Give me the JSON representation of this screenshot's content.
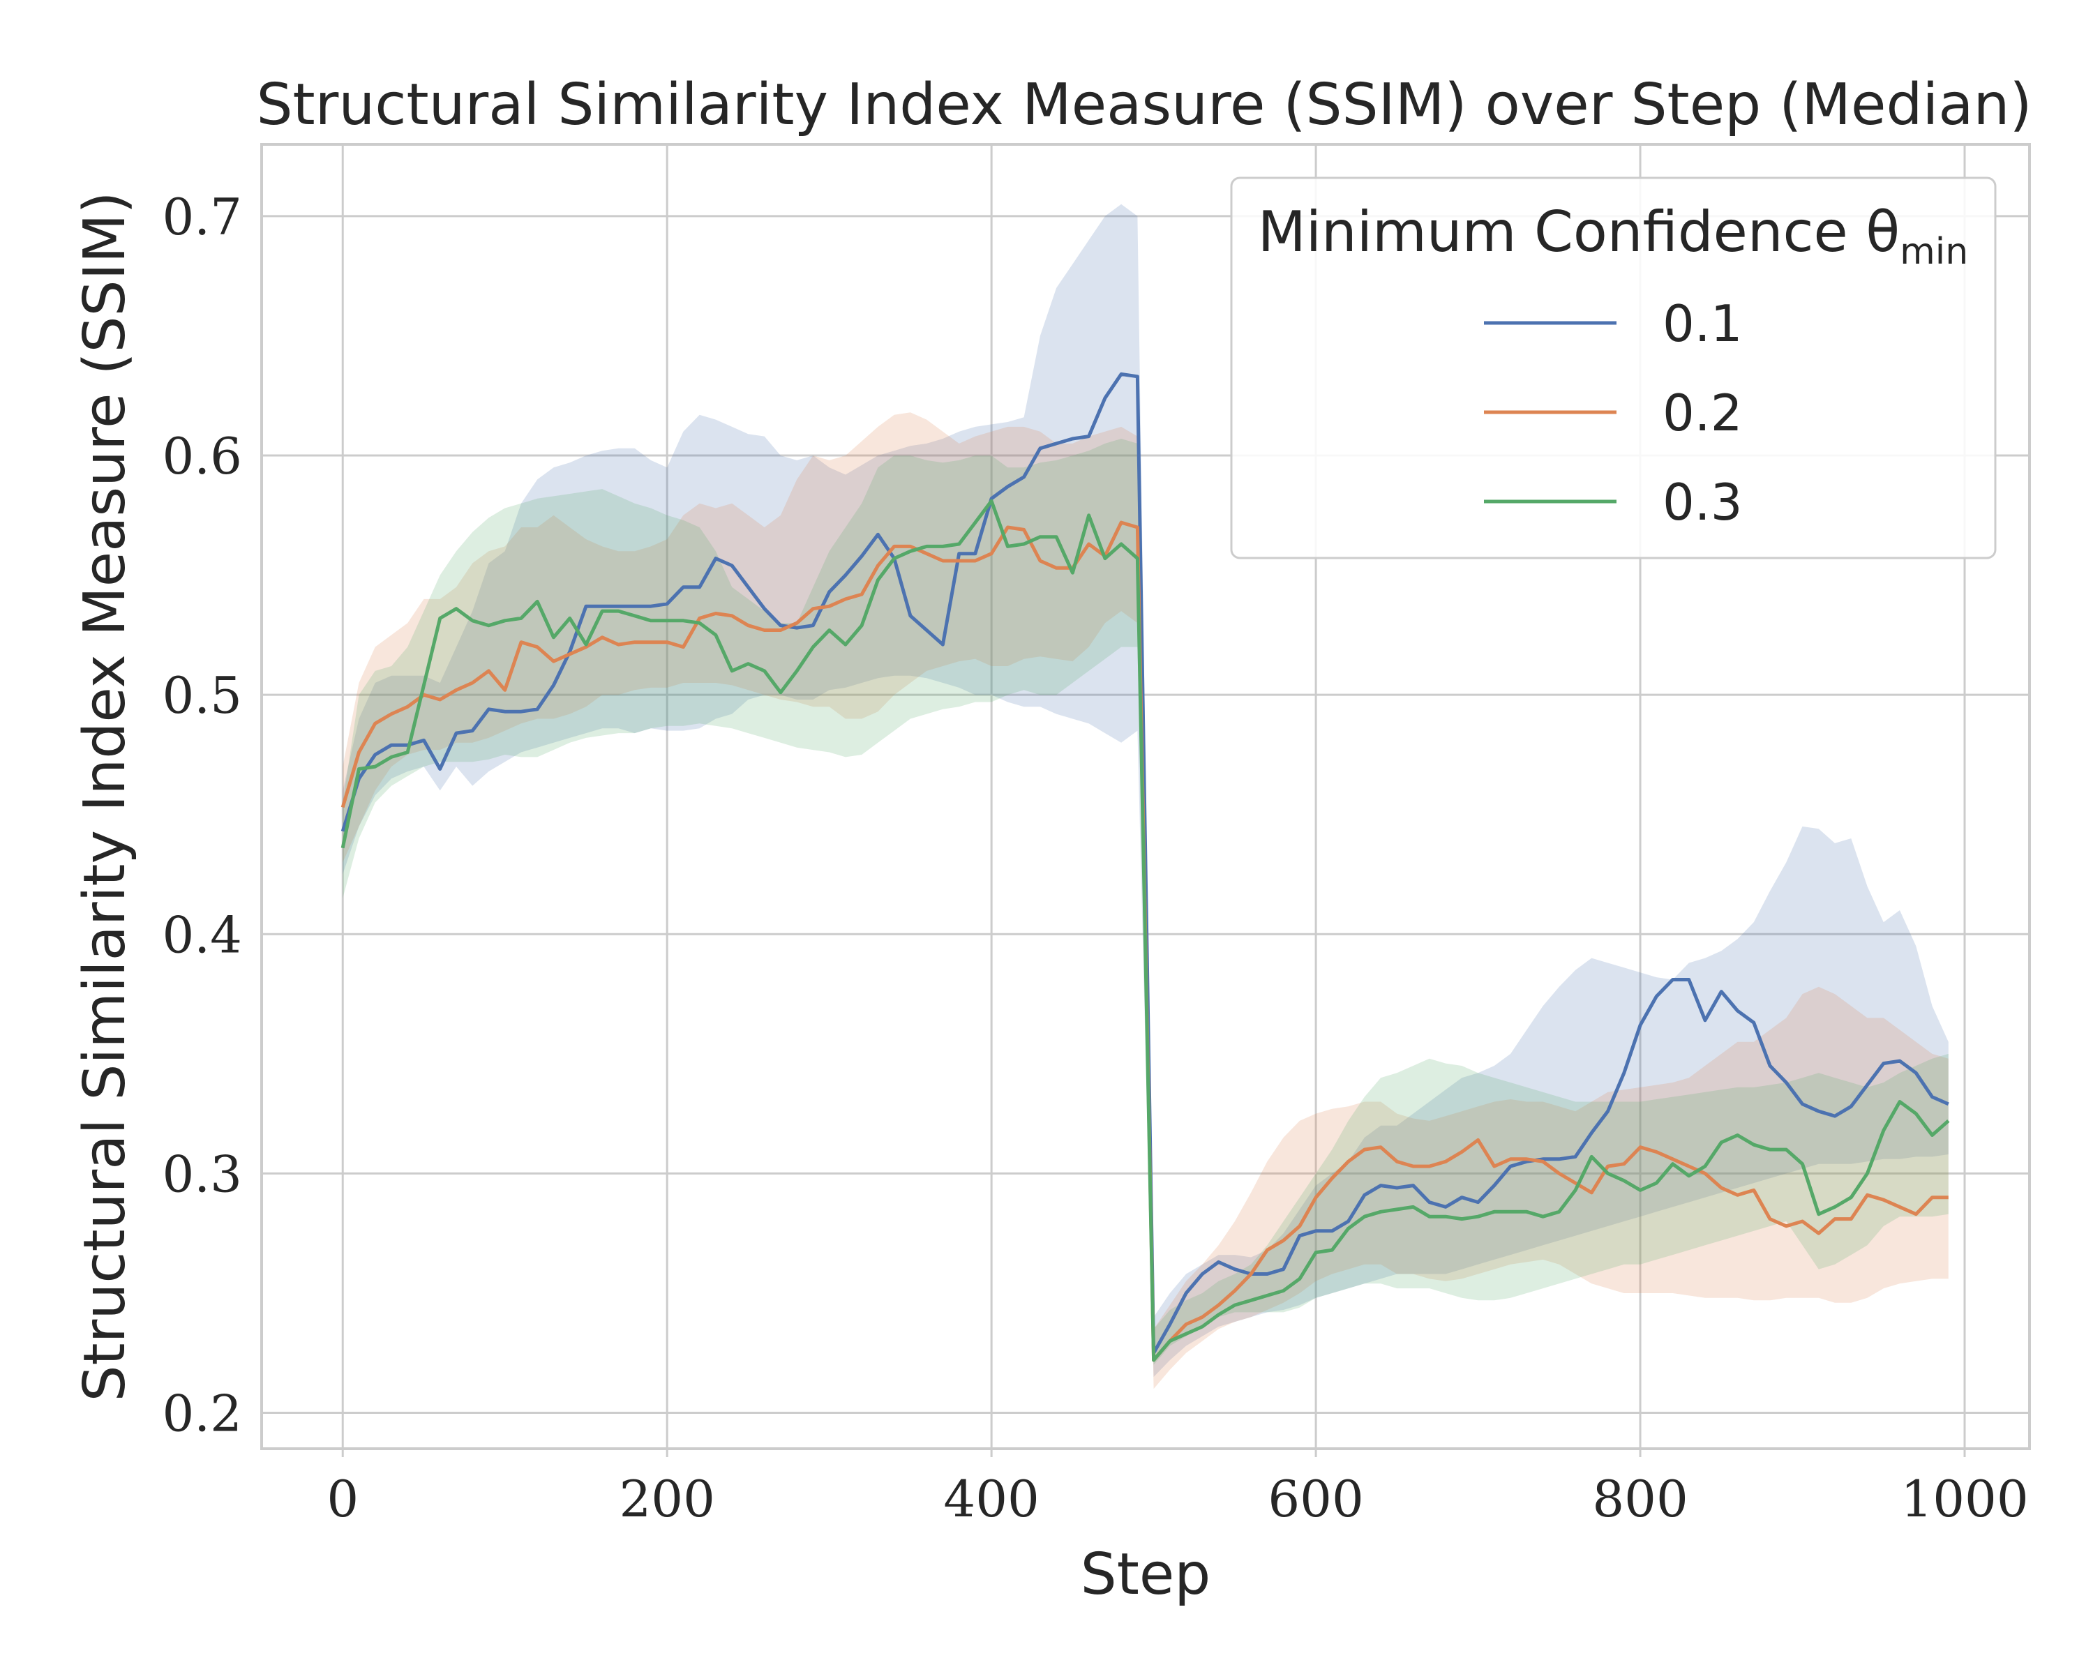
{
  "chart_data": {
    "type": "line",
    "title": "Structural Similarity Index Measure (SSIM) over Step (Median)",
    "xlabel": "Step",
    "ylabel": "Structural Similarity Index Measure (SSIM)",
    "xlim": [
      -50,
      1040
    ],
    "ylim": [
      0.185,
      0.73
    ],
    "xticks": [
      0,
      200,
      400,
      600,
      800,
      1000
    ],
    "xtick_labels": [
      "0",
      "200",
      "400",
      "600",
      "800",
      "1000"
    ],
    "yticks": [
      0.2,
      0.3,
      0.4,
      0.5,
      0.6,
      0.7
    ],
    "ytick_labels": [
      "0.2",
      "0.3",
      "0.4",
      "0.5",
      "0.6",
      "0.7"
    ],
    "grid": true,
    "legend": {
      "title": "Minimum Confidence θ",
      "title_subscript": "min",
      "placement": "top-right"
    },
    "x": [
      0,
      10,
      20,
      30,
      40,
      50,
      60,
      70,
      80,
      90,
      100,
      110,
      120,
      130,
      140,
      150,
      160,
      170,
      180,
      190,
      200,
      210,
      220,
      230,
      240,
      250,
      260,
      270,
      280,
      290,
      300,
      310,
      320,
      330,
      340,
      350,
      360,
      370,
      380,
      390,
      400,
      410,
      420,
      430,
      440,
      450,
      460,
      470,
      480,
      490,
      500,
      510,
      520,
      530,
      540,
      550,
      560,
      570,
      580,
      590,
      600,
      610,
      620,
      630,
      640,
      650,
      660,
      670,
      680,
      690,
      700,
      710,
      720,
      730,
      740,
      750,
      760,
      770,
      780,
      790,
      800,
      810,
      820,
      830,
      840,
      850,
      860,
      870,
      880,
      890,
      900,
      910,
      920,
      930,
      940,
      950,
      960,
      970,
      980,
      990
    ],
    "series": [
      {
        "name": "0.1",
        "color": "#4c72b0",
        "values": [
          0.443,
          0.465,
          0.475,
          0.479,
          0.479,
          0.481,
          0.469,
          0.484,
          0.485,
          0.494,
          0.493,
          0.493,
          0.494,
          0.504,
          0.518,
          0.537,
          0.537,
          0.537,
          0.537,
          0.537,
          0.538,
          0.545,
          0.545,
          0.557,
          0.554,
          0.545,
          0.536,
          0.529,
          0.528,
          0.529,
          0.543,
          0.55,
          0.558,
          0.567,
          0.557,
          0.533,
          0.527,
          0.521,
          0.559,
          0.559,
          0.582,
          0.587,
          0.591,
          0.603,
          0.605,
          0.607,
          0.608,
          0.624,
          0.634,
          0.633,
          0.225,
          0.237,
          0.25,
          0.258,
          0.263,
          0.26,
          0.258,
          0.258,
          0.26,
          0.274,
          0.276,
          0.276,
          0.28,
          0.291,
          0.295,
          0.294,
          0.295,
          0.288,
          0.286,
          0.29,
          0.288,
          0.295,
          0.303,
          0.305,
          0.306,
          0.306,
          0.307,
          0.317,
          0.326,
          0.342,
          0.362,
          0.374,
          0.381,
          0.381,
          0.364,
          0.376,
          0.368,
          0.363,
          0.345,
          0.338,
          0.329,
          0.326,
          0.324,
          0.328,
          0.337,
          0.346,
          0.347,
          0.342,
          0.332,
          0.329
        ],
        "lower": [
          0.425,
          0.445,
          0.458,
          0.465,
          0.468,
          0.47,
          0.46,
          0.47,
          0.462,
          0.468,
          0.472,
          0.476,
          0.478,
          0.48,
          0.482,
          0.484,
          0.486,
          0.486,
          0.484,
          0.486,
          0.485,
          0.485,
          0.486,
          0.49,
          0.492,
          0.498,
          0.5,
          0.5,
          0.498,
          0.498,
          0.502,
          0.503,
          0.505,
          0.507,
          0.508,
          0.508,
          0.507,
          0.505,
          0.503,
          0.5,
          0.5,
          0.497,
          0.495,
          0.495,
          0.492,
          0.49,
          0.488,
          0.484,
          0.48,
          0.485,
          0.215,
          0.222,
          0.228,
          0.232,
          0.236,
          0.238,
          0.24,
          0.242,
          0.243,
          0.245,
          0.248,
          0.25,
          0.252,
          0.254,
          0.256,
          0.258,
          0.258,
          0.258,
          0.258,
          0.26,
          0.262,
          0.264,
          0.266,
          0.268,
          0.27,
          0.272,
          0.274,
          0.276,
          0.278,
          0.28,
          0.282,
          0.284,
          0.286,
          0.288,
          0.29,
          0.292,
          0.294,
          0.296,
          0.298,
          0.3,
          0.302,
          0.304,
          0.304,
          0.304,
          0.305,
          0.306,
          0.306,
          0.307,
          0.307,
          0.308
        ],
        "upper": [
          0.46,
          0.49,
          0.505,
          0.508,
          0.508,
          0.508,
          0.505,
          0.52,
          0.535,
          0.555,
          0.56,
          0.58,
          0.59,
          0.595,
          0.597,
          0.6,
          0.602,
          0.603,
          0.603,
          0.598,
          0.595,
          0.61,
          0.617,
          0.615,
          0.612,
          0.609,
          0.608,
          0.6,
          0.598,
          0.6,
          0.595,
          0.592,
          0.596,
          0.6,
          0.602,
          0.604,
          0.605,
          0.607,
          0.61,
          0.612,
          0.613,
          0.614,
          0.616,
          0.65,
          0.67,
          0.68,
          0.69,
          0.7,
          0.705,
          0.7,
          0.24,
          0.25,
          0.258,
          0.262,
          0.266,
          0.266,
          0.265,
          0.268,
          0.275,
          0.285,
          0.295,
          0.3,
          0.305,
          0.315,
          0.32,
          0.32,
          0.325,
          0.33,
          0.335,
          0.34,
          0.342,
          0.345,
          0.35,
          0.36,
          0.37,
          0.378,
          0.385,
          0.39,
          0.388,
          0.386,
          0.384,
          0.382,
          0.381,
          0.388,
          0.39,
          0.393,
          0.398,
          0.405,
          0.418,
          0.43,
          0.445,
          0.444,
          0.438,
          0.44,
          0.42,
          0.405,
          0.41,
          0.395,
          0.37,
          0.355
        ]
      },
      {
        "name": "0.2",
        "color": "#dd8452",
        "values": [
          0.453,
          0.476,
          0.488,
          0.492,
          0.495,
          0.5,
          0.498,
          0.502,
          0.505,
          0.51,
          0.502,
          0.522,
          0.52,
          0.514,
          0.517,
          0.52,
          0.524,
          0.521,
          0.522,
          0.522,
          0.522,
          0.52,
          0.532,
          0.534,
          0.533,
          0.529,
          0.527,
          0.527,
          0.53,
          0.536,
          0.537,
          0.54,
          0.542,
          0.554,
          0.562,
          0.562,
          0.559,
          0.556,
          0.556,
          0.556,
          0.559,
          0.57,
          0.569,
          0.556,
          0.553,
          0.553,
          0.563,
          0.558,
          0.572,
          0.57,
          0.222,
          0.23,
          0.237,
          0.24,
          0.245,
          0.251,
          0.258,
          0.268,
          0.272,
          0.278,
          0.29,
          0.298,
          0.305,
          0.31,
          0.311,
          0.305,
          0.303,
          0.303,
          0.305,
          0.309,
          0.314,
          0.303,
          0.306,
          0.306,
          0.305,
          0.3,
          0.296,
          0.292,
          0.303,
          0.304,
          0.311,
          0.309,
          0.306,
          0.303,
          0.3,
          0.294,
          0.291,
          0.293,
          0.281,
          0.278,
          0.28,
          0.275,
          0.281,
          0.281,
          0.291,
          0.289,
          0.286,
          0.283,
          0.29,
          0.29
        ],
        "lower": [
          0.43,
          0.445,
          0.46,
          0.47,
          0.475,
          0.477,
          0.477,
          0.48,
          0.48,
          0.482,
          0.485,
          0.488,
          0.49,
          0.49,
          0.492,
          0.495,
          0.5,
          0.5,
          0.502,
          0.503,
          0.503,
          0.505,
          0.505,
          0.505,
          0.504,
          0.502,
          0.5,
          0.498,
          0.497,
          0.495,
          0.495,
          0.49,
          0.49,
          0.493,
          0.5,
          0.505,
          0.51,
          0.512,
          0.514,
          0.515,
          0.512,
          0.512,
          0.515,
          0.516,
          0.515,
          0.514,
          0.52,
          0.53,
          0.535,
          0.53,
          0.21,
          0.218,
          0.225,
          0.23,
          0.235,
          0.238,
          0.24,
          0.243,
          0.246,
          0.25,
          0.255,
          0.258,
          0.26,
          0.262,
          0.262,
          0.258,
          0.258,
          0.256,
          0.255,
          0.256,
          0.258,
          0.26,
          0.262,
          0.263,
          0.264,
          0.262,
          0.258,
          0.254,
          0.252,
          0.25,
          0.25,
          0.25,
          0.25,
          0.249,
          0.248,
          0.248,
          0.248,
          0.247,
          0.247,
          0.248,
          0.248,
          0.248,
          0.246,
          0.246,
          0.248,
          0.252,
          0.254,
          0.255,
          0.256,
          0.256
        ],
        "upper": [
          0.47,
          0.505,
          0.52,
          0.525,
          0.53,
          0.54,
          0.54,
          0.545,
          0.555,
          0.56,
          0.562,
          0.57,
          0.57,
          0.575,
          0.57,
          0.565,
          0.562,
          0.56,
          0.56,
          0.562,
          0.565,
          0.575,
          0.58,
          0.578,
          0.58,
          0.575,
          0.57,
          0.575,
          0.59,
          0.6,
          0.598,
          0.6,
          0.606,
          0.612,
          0.617,
          0.618,
          0.615,
          0.61,
          0.605,
          0.608,
          0.61,
          0.612,
          0.612,
          0.61,
          0.605,
          0.605,
          0.608,
          0.61,
          0.612,
          0.608,
          0.235,
          0.245,
          0.255,
          0.262,
          0.27,
          0.28,
          0.292,
          0.305,
          0.315,
          0.322,
          0.325,
          0.327,
          0.328,
          0.33,
          0.33,
          0.325,
          0.323,
          0.322,
          0.324,
          0.326,
          0.328,
          0.33,
          0.331,
          0.33,
          0.33,
          0.328,
          0.326,
          0.33,
          0.334,
          0.335,
          0.336,
          0.337,
          0.338,
          0.34,
          0.345,
          0.35,
          0.355,
          0.355,
          0.36,
          0.365,
          0.375,
          0.378,
          0.375,
          0.37,
          0.365,
          0.365,
          0.36,
          0.355,
          0.35,
          0.348
        ]
      },
      {
        "name": "0.3",
        "color": "#55a868",
        "values": [
          0.436,
          0.469,
          0.47,
          0.474,
          0.476,
          0.504,
          0.532,
          0.536,
          0.531,
          0.529,
          0.531,
          0.532,
          0.539,
          0.524,
          0.532,
          0.521,
          0.535,
          0.535,
          0.533,
          0.531,
          0.531,
          0.531,
          0.53,
          0.525,
          0.51,
          0.513,
          0.51,
          0.501,
          0.51,
          0.52,
          0.527,
          0.521,
          0.529,
          0.548,
          0.557,
          0.56,
          0.562,
          0.562,
          0.563,
          0.572,
          0.581,
          0.562,
          0.563,
          0.566,
          0.566,
          0.551,
          0.575,
          0.557,
          0.563,
          0.557,
          0.222,
          0.23,
          0.233,
          0.236,
          0.241,
          0.245,
          0.247,
          0.249,
          0.251,
          0.256,
          0.267,
          0.268,
          0.277,
          0.282,
          0.284,
          0.285,
          0.286,
          0.282,
          0.282,
          0.281,
          0.282,
          0.284,
          0.284,
          0.284,
          0.282,
          0.284,
          0.293,
          0.307,
          0.3,
          0.297,
          0.293,
          0.296,
          0.304,
          0.299,
          0.303,
          0.313,
          0.316,
          0.312,
          0.31,
          0.31,
          0.304,
          0.283,
          0.286,
          0.29,
          0.3,
          0.318,
          0.33,
          0.325,
          0.316,
          0.322
        ],
        "lower": [
          0.415,
          0.44,
          0.455,
          0.462,
          0.466,
          0.47,
          0.472,
          0.472,
          0.472,
          0.473,
          0.475,
          0.474,
          0.474,
          0.477,
          0.48,
          0.482,
          0.483,
          0.484,
          0.484,
          0.486,
          0.487,
          0.487,
          0.488,
          0.487,
          0.486,
          0.484,
          0.482,
          0.48,
          0.478,
          0.477,
          0.476,
          0.474,
          0.475,
          0.48,
          0.485,
          0.49,
          0.492,
          0.494,
          0.495,
          0.497,
          0.497,
          0.5,
          0.502,
          0.5,
          0.5,
          0.505,
          0.51,
          0.515,
          0.52,
          0.52,
          0.22,
          0.228,
          0.232,
          0.236,
          0.24,
          0.242,
          0.242,
          0.242,
          0.242,
          0.244,
          0.248,
          0.25,
          0.252,
          0.254,
          0.254,
          0.252,
          0.252,
          0.252,
          0.25,
          0.248,
          0.247,
          0.247,
          0.248,
          0.25,
          0.252,
          0.254,
          0.256,
          0.258,
          0.26,
          0.262,
          0.262,
          0.264,
          0.266,
          0.268,
          0.27,
          0.272,
          0.274,
          0.276,
          0.278,
          0.28,
          0.27,
          0.26,
          0.262,
          0.266,
          0.27,
          0.278,
          0.282,
          0.282,
          0.282,
          0.283
        ],
        "upper": [
          0.455,
          0.5,
          0.51,
          0.512,
          0.52,
          0.535,
          0.55,
          0.56,
          0.568,
          0.574,
          0.578,
          0.58,
          0.582,
          0.583,
          0.584,
          0.585,
          0.586,
          0.583,
          0.58,
          0.578,
          0.575,
          0.573,
          0.57,
          0.56,
          0.545,
          0.54,
          0.535,
          0.53,
          0.53,
          0.545,
          0.56,
          0.57,
          0.58,
          0.595,
          0.6,
          0.6,
          0.598,
          0.597,
          0.598,
          0.6,
          0.6,
          0.595,
          0.595,
          0.597,
          0.598,
          0.6,
          0.602,
          0.605,
          0.607,
          0.605,
          0.235,
          0.243,
          0.247,
          0.25,
          0.255,
          0.258,
          0.262,
          0.27,
          0.28,
          0.29,
          0.3,
          0.31,
          0.322,
          0.332,
          0.34,
          0.342,
          0.345,
          0.348,
          0.346,
          0.345,
          0.342,
          0.34,
          0.338,
          0.336,
          0.334,
          0.332,
          0.33,
          0.33,
          0.33,
          0.33,
          0.33,
          0.331,
          0.332,
          0.333,
          0.334,
          0.335,
          0.336,
          0.336,
          0.337,
          0.338,
          0.34,
          0.342,
          0.34,
          0.338,
          0.336,
          0.338,
          0.342,
          0.345,
          0.348,
          0.35
        ]
      }
    ]
  }
}
